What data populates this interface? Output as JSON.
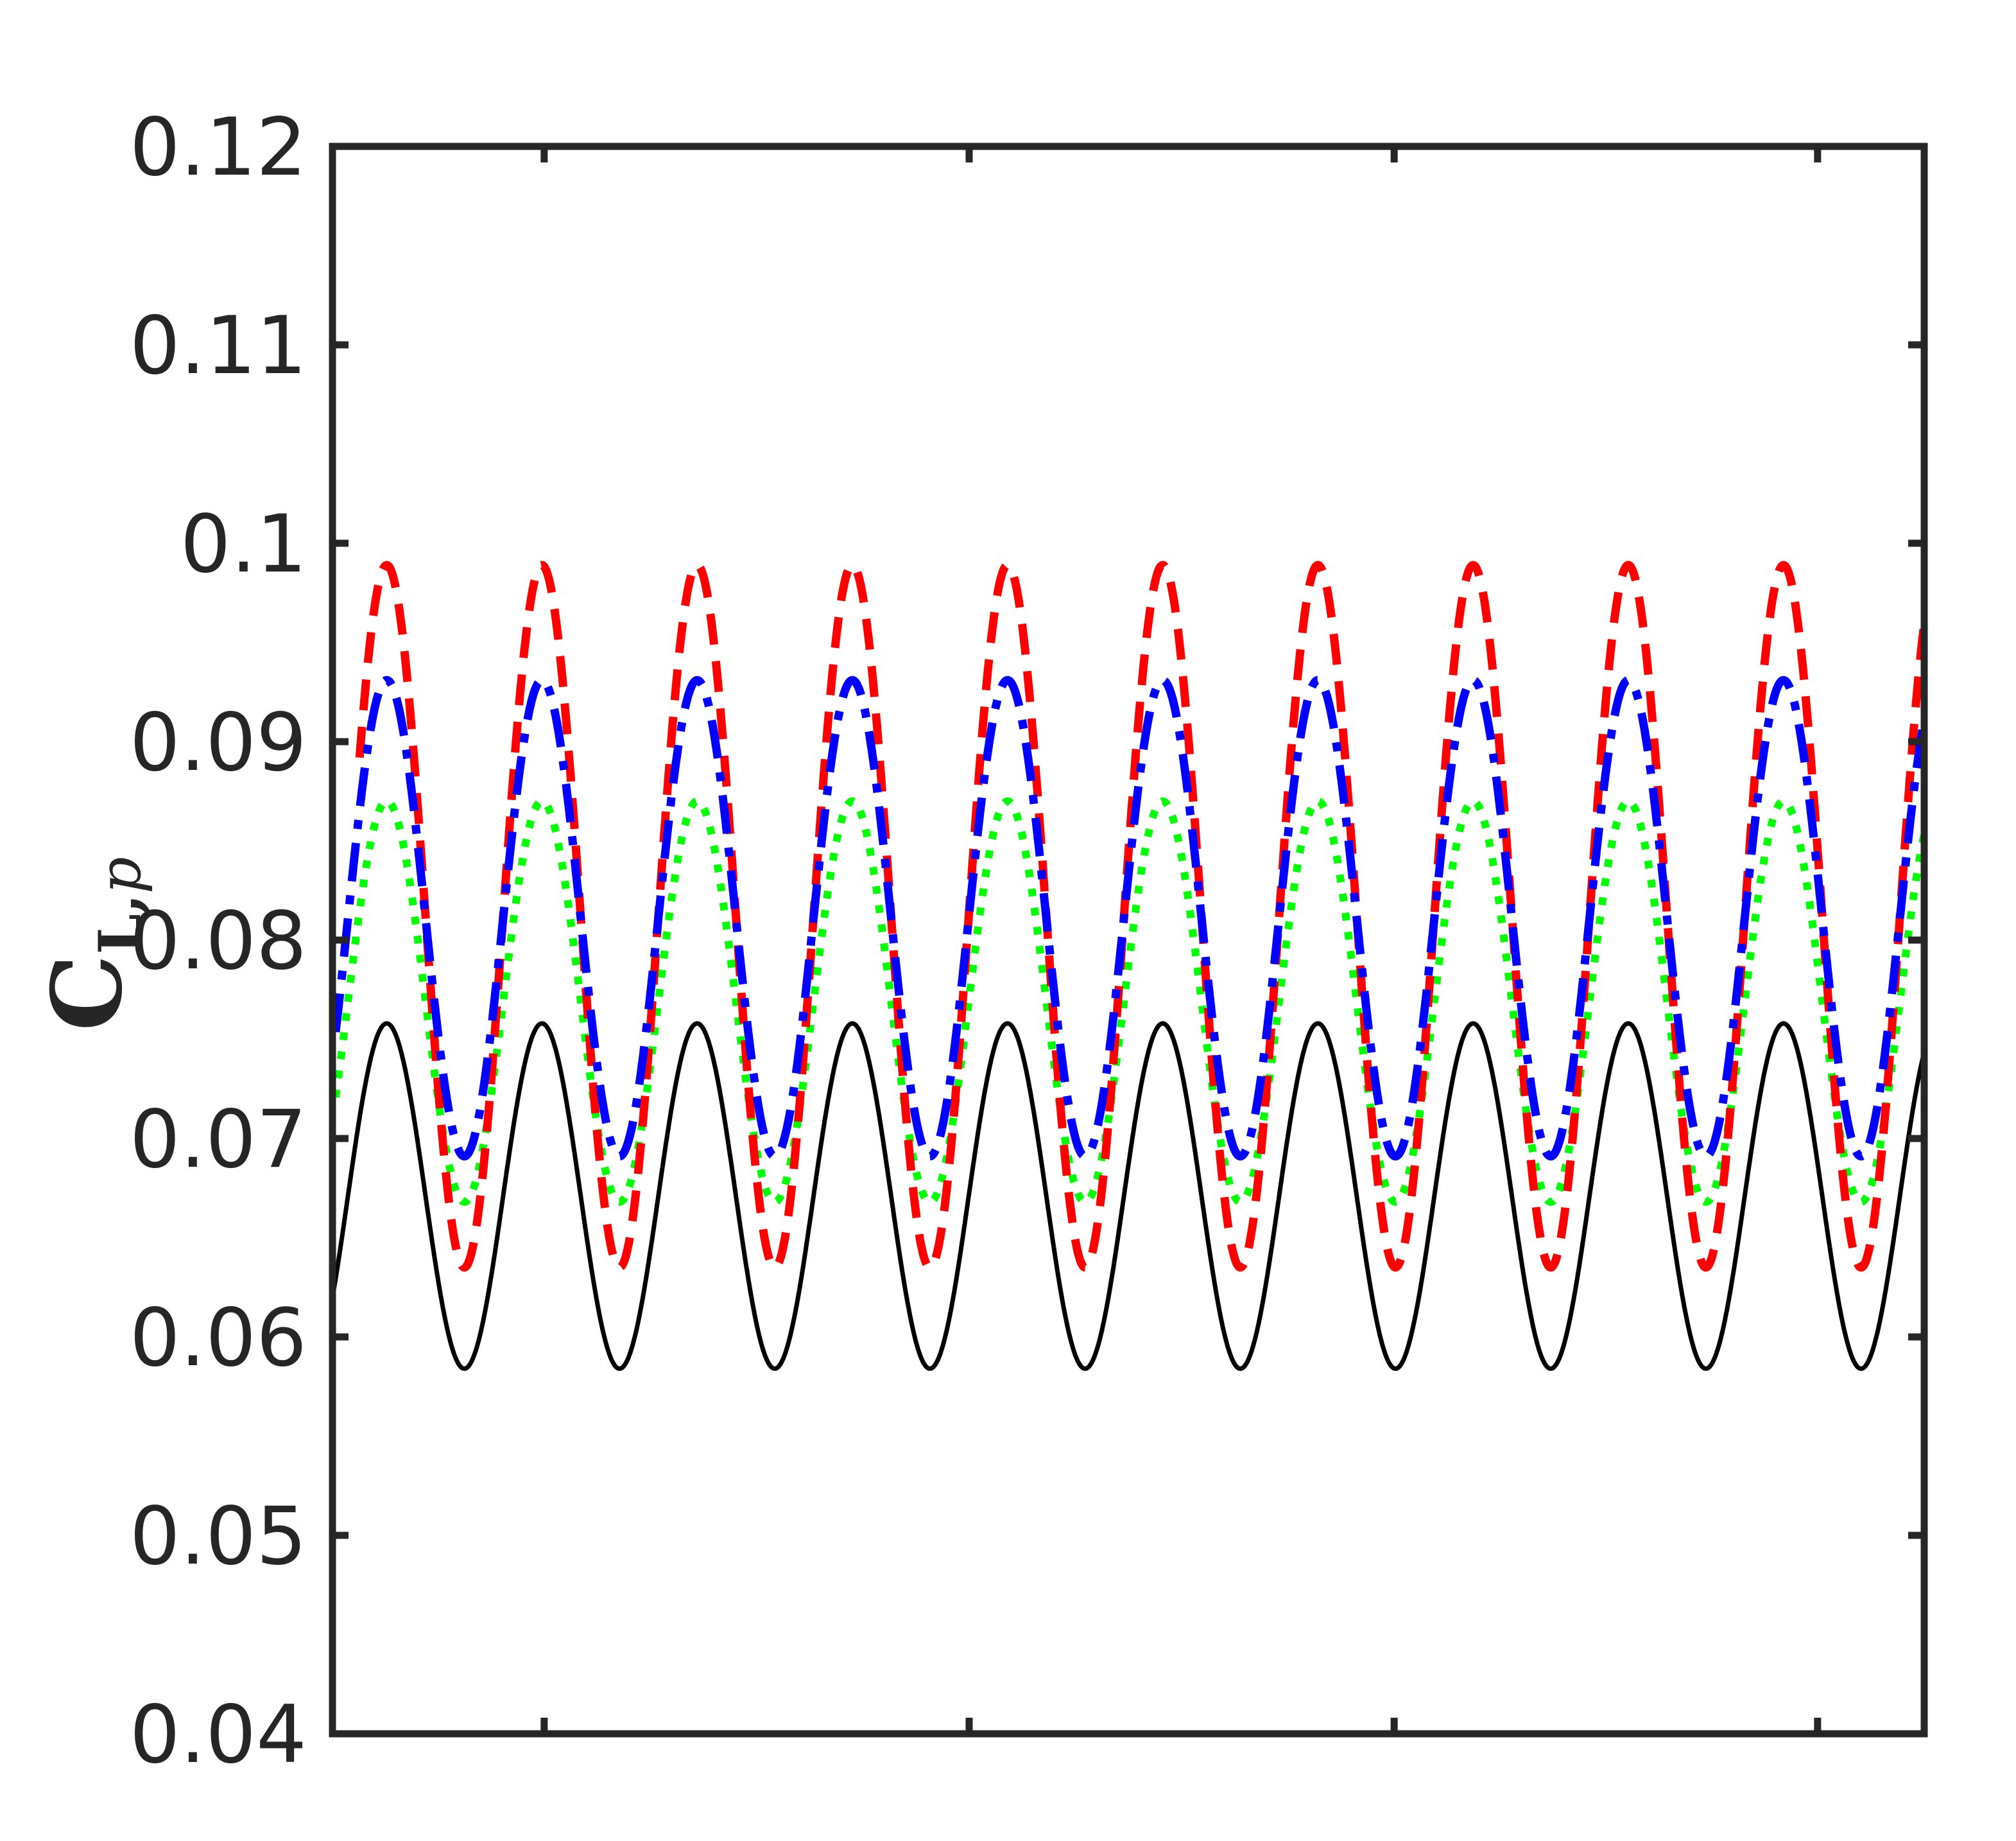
{
  "chart_data": {
    "type": "line",
    "ylabel": {
      "main": "C",
      "sub": "L,",
      "sub_italic": "p"
    },
    "ylim": [
      0.04,
      0.12
    ],
    "yticks": [
      "0.04",
      "0.05",
      "0.06",
      "0.07",
      "0.08",
      "0.09",
      "0.1",
      "0.11",
      "0.12"
    ],
    "xlim": [
      0,
      1
    ],
    "xticks": [
      0.133,
      0.4,
      0.667,
      0.933
    ],
    "xticklabels_visible": false,
    "grid": false,
    "legend": "none",
    "series": [
      {
        "color": "#000000",
        "style": "solid",
        "mean": 0.0671,
        "amplitude": 0.0087,
        "min": 0.0584,
        "max": 0.0758,
        "period": 0.0975,
        "peak_x": 0.0341,
        "x_start": 0,
        "x_end": 1
      },
      {
        "color": "#ff0000",
        "style": "dashed",
        "mean": 0.0812,
        "amplitude": 0.0177,
        "min": 0.0635,
        "max": 0.0989,
        "period": 0.0975,
        "peak_x": 0.0341,
        "x_start": 0.017,
        "x_end": 1
      },
      {
        "color": "#0000ff",
        "style": "dash-dot",
        "mean": 0.0811,
        "amplitude": 0.012,
        "min": 0.0691,
        "max": 0.0931,
        "period": 0.0975,
        "peak_x": 0.0341,
        "x_start": 0.002,
        "x_end": 1
      },
      {
        "color": "#00ff00",
        "style": "dotted",
        "mean": 0.0769,
        "amplitude": 0.0101,
        "min": 0.0668,
        "max": 0.087,
        "period": 0.0975,
        "peak_x": 0.0341,
        "x_start": 0.002,
        "x_end": 1
      }
    ]
  }
}
